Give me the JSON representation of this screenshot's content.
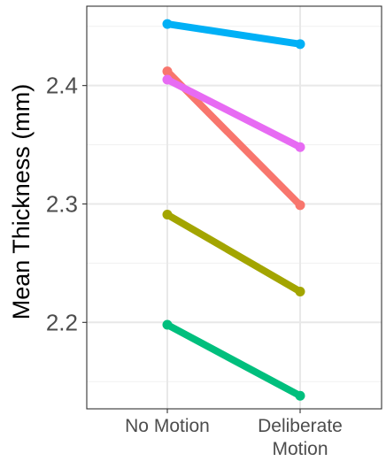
{
  "chart_data": {
    "type": "line",
    "title": "",
    "xlabel": "",
    "ylabel": "Mean Thickness (mm)",
    "categories": [
      "No Motion",
      "Deliberate\nMotion"
    ],
    "ylim": [
      2.127,
      2.467
    ],
    "y_ticks": [
      2.2,
      2.3,
      2.4
    ],
    "y_tick_labels": [
      "2.2",
      "2.3",
      "2.4"
    ],
    "grid": true,
    "legend": "none",
    "series": [
      {
        "color": "#00B0F6",
        "values": [
          2.452,
          2.435
        ]
      },
      {
        "color": "#F8766D",
        "values": [
          2.412,
          2.299
        ]
      },
      {
        "color": "#E76BF3",
        "values": [
          2.405,
          2.348
        ]
      },
      {
        "color": "#A3A500",
        "values": [
          2.291,
          2.226
        ]
      },
      {
        "color": "#00BF7D",
        "values": [
          2.198,
          2.138
        ]
      }
    ]
  }
}
